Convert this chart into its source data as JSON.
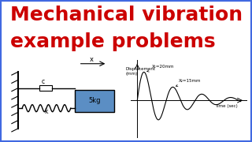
{
  "bg_color": "#ffffff",
  "title_bg_color": "#00bfff",
  "title_text1": "Mechanical vibration",
  "title_text2": "example problems",
  "title_color": "#cc0000",
  "title_fontsize": 18,
  "title_fontstyle": "bold",
  "mass_label": "5kg",
  "mass_color": "#5b8ec4",
  "damper_label": "c",
  "spring_label": "k",
  "disp_label_x": "x",
  "graph_ylabel": "Displacement\n(mm)",
  "graph_xlabel": "Time (sec)",
  "graph_annot1": "X₁=20mm",
  "graph_annot2": "X₂=15mm",
  "border_color": "#4169e1",
  "border_width": 3
}
